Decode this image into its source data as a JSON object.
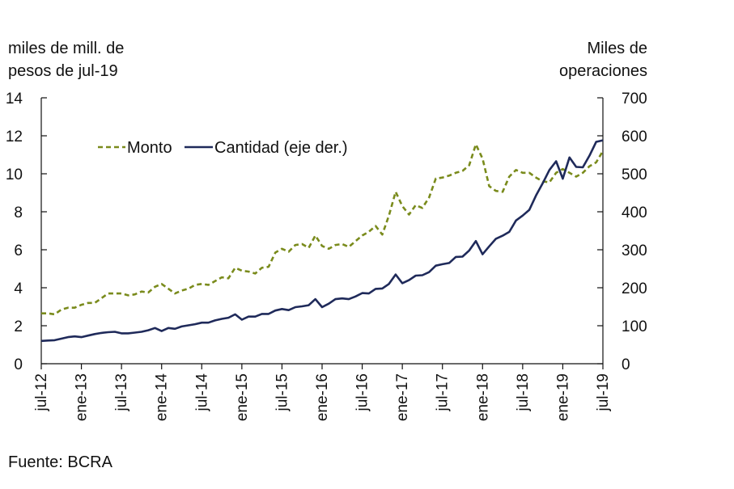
{
  "chart_data": {
    "type": "line",
    "source": "Fuente: BCRA",
    "left_axis": {
      "label_lines": [
        "miles de mill. de",
        "pesos de jul-19"
      ],
      "ylim": [
        0,
        14
      ],
      "ticks": [
        0,
        2,
        4,
        6,
        8,
        10,
        12,
        14
      ]
    },
    "right_axis": {
      "label_lines": [
        "Miles de",
        "operaciones"
      ],
      "ylim": [
        0,
        700
      ],
      "ticks": [
        0,
        100,
        200,
        300,
        400,
        500,
        600,
        700
      ]
    },
    "x_tick_labels": [
      "jul-12",
      "ene-13",
      "jul-13",
      "ene-14",
      "jul-14",
      "ene-15",
      "jul-15",
      "ene-16",
      "jul-16",
      "ene-17",
      "jul-17",
      "ene-18",
      "jul-18",
      "ene-19",
      "jul-19"
    ],
    "legend": {
      "monto_label": "Monto",
      "cantidad_label": "Cantidad (eje der.)"
    },
    "series": [
      {
        "name": "Monto",
        "axis": "left",
        "color": "#7a8b1c",
        "dash": true,
        "values": [
          2.65,
          2.65,
          2.6,
          2.85,
          2.95,
          2.95,
          3.1,
          3.2,
          3.2,
          3.45,
          3.7,
          3.7,
          3.7,
          3.6,
          3.65,
          3.8,
          3.75,
          4.05,
          4.2,
          3.95,
          3.7,
          3.85,
          3.95,
          4.15,
          4.2,
          4.15,
          4.35,
          4.55,
          4.5,
          5.05,
          4.9,
          4.85,
          4.75,
          5.05,
          5.1,
          5.85,
          6.05,
          5.9,
          6.25,
          6.3,
          6.1,
          6.75,
          6.2,
          6.05,
          6.25,
          6.3,
          6.15,
          6.45,
          6.75,
          6.95,
          7.25,
          6.8,
          7.8,
          9.05,
          8.3,
          7.85,
          8.35,
          8.2,
          8.75,
          9.75,
          9.8,
          9.9,
          10.05,
          10.15,
          10.45,
          11.55,
          10.8,
          9.35,
          9.1,
          9.05,
          9.85,
          10.2,
          10.05,
          10.05,
          9.8,
          9.6,
          9.55,
          10.05,
          10.25,
          10.05,
          9.85,
          10.05,
          10.4,
          10.6,
          11.2
        ]
      },
      {
        "name": "Cantidad (eje der.)",
        "axis": "right",
        "color": "#1f2a5a",
        "dash": false,
        "values": [
          60,
          61,
          62,
          66,
          70,
          72,
          70,
          74,
          78,
          81,
          83,
          84,
          80,
          80,
          82,
          84,
          88,
          94,
          86,
          94,
          92,
          98,
          101,
          104,
          108,
          108,
          114,
          118,
          121,
          130,
          116,
          124,
          124,
          131,
          131,
          140,
          144,
          141,
          149,
          151,
          154,
          170,
          149,
          158,
          170,
          172,
          170,
          177,
          186,
          185,
          197,
          198,
          210,
          235,
          212,
          220,
          232,
          233,
          241,
          258,
          262,
          265,
          281,
          282,
          298,
          323,
          288,
          309,
          329,
          337,
          347,
          377,
          390,
          405,
          443,
          475,
          510,
          533,
          487,
          543,
          518,
          517,
          548,
          584,
          588
        ]
      }
    ]
  }
}
